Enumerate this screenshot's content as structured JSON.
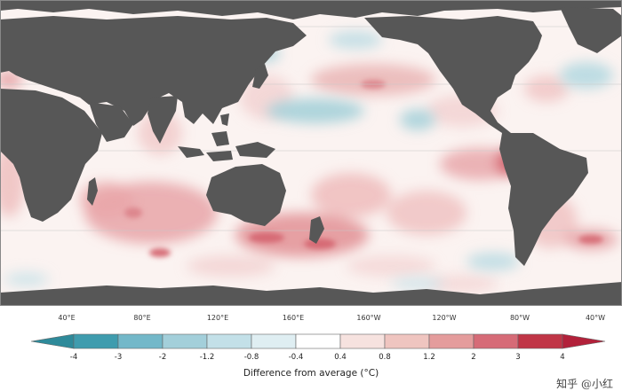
{
  "map": {
    "longitude_labels": [
      "40°E",
      "80°E",
      "120°E",
      "160°E",
      "160°W",
      "120°W",
      "80°W",
      "40°W"
    ],
    "land_color": "#575757",
    "ocean_base_color": "#fbf3f1"
  },
  "legend": {
    "title": "Difference from average (°C)",
    "ticks": [
      "-4",
      "-3",
      "-2",
      "-1.2",
      "-0.8",
      "-0.4",
      "0.4",
      "0.8",
      "1.2",
      "2",
      "3",
      "4"
    ],
    "colors": [
      "#3f9cae",
      "#73b8c9",
      "#a3cfda",
      "#c3e0e8",
      "#dfeef2",
      "#ffffff",
      "#f6e2df",
      "#efc5c0",
      "#e49c9c",
      "#d66b77",
      "#c03546"
    ],
    "cold_end_color": "#2e8a9a",
    "warm_end_color": "#b2213a"
  },
  "credits": {
    "left": "",
    "right": "知乎 @小红"
  }
}
